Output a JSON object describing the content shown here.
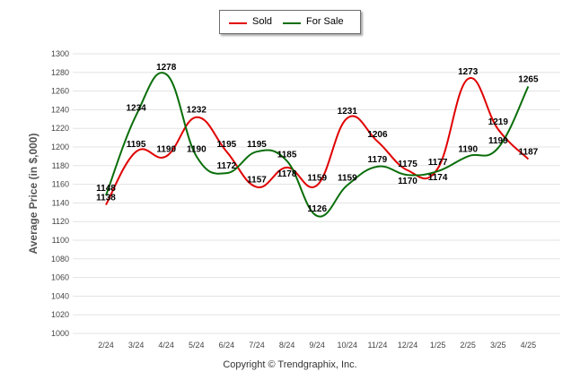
{
  "legend": {
    "sold_label": "Sold",
    "forsale_label": "For Sale"
  },
  "copyright": "Copyright © Trendgraphix, Inc.",
  "chart_data": {
    "type": "line",
    "title": "",
    "xlabel": "",
    "ylabel": "Average Price (in $,000)",
    "ylim": [
      1000,
      1300
    ],
    "yticks": [
      1000,
      1020,
      1040,
      1060,
      1080,
      1100,
      1120,
      1140,
      1160,
      1180,
      1200,
      1220,
      1240,
      1260,
      1280,
      1300
    ],
    "categories": [
      "2/24",
      "3/24",
      "4/24",
      "5/24",
      "6/24",
      "7/24",
      "8/24",
      "9/24",
      "10/24",
      "11/24",
      "12/24",
      "1/25",
      "2/25",
      "3/25",
      "4/25"
    ],
    "grid": "horizontal",
    "legend_position": "top-center",
    "series": [
      {
        "name": "Sold",
        "color": "#e00000",
        "values": [
          1138,
          1195,
          1190,
          1232,
          1195,
          1157,
          1178,
          1159,
          1231,
          1206,
          1175,
          1177,
          1273,
          1219,
          1187
        ]
      },
      {
        "name": "For Sale",
        "color": "#0a6e0a",
        "values": [
          1148,
          1234,
          1278,
          1190,
          1172,
          1195,
          1185,
          1126,
          1159,
          1179,
          1170,
          1174,
          1190,
          1199,
          1265
        ]
      }
    ]
  }
}
